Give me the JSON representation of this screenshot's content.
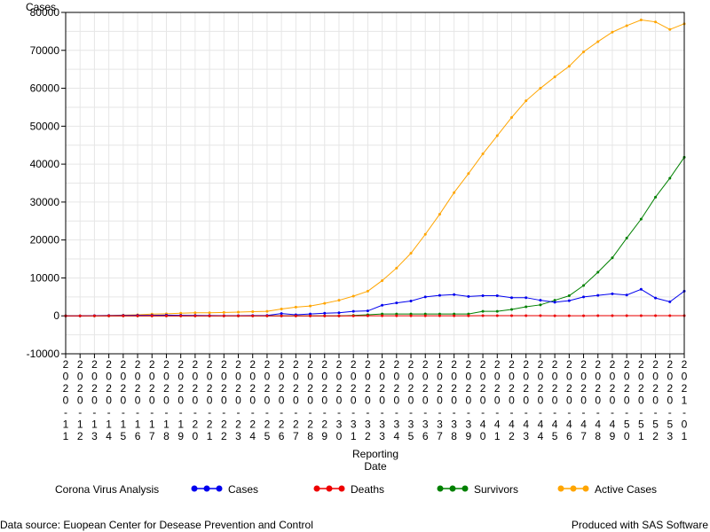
{
  "chart_data": {
    "type": "line",
    "ylabel": "Cases",
    "xlabel": "Reporting\nDate",
    "ylim": [
      -10000,
      80000
    ],
    "yticks": [
      -10000,
      0,
      10000,
      20000,
      30000,
      40000,
      50000,
      60000,
      70000,
      80000
    ],
    "grid": true,
    "legend_position": "bottom",
    "x": [
      "2020-11",
      "2020-12",
      "2020-13",
      "2020-14",
      "2020-15",
      "2020-16",
      "2020-17",
      "2020-18",
      "2020-19",
      "2020-20",
      "2020-21",
      "2020-22",
      "2020-23",
      "2020-24",
      "2020-25",
      "2020-26",
      "2020-27",
      "2020-28",
      "2020-29",
      "2020-30",
      "2020-31",
      "2020-32",
      "2020-33",
      "2020-34",
      "2020-35",
      "2020-36",
      "2020-37",
      "2020-38",
      "2020-39",
      "2020-40",
      "2020-41",
      "2020-42",
      "2020-43",
      "2020-44",
      "2020-45",
      "2020-46",
      "2020-47",
      "2020-48",
      "2020-49",
      "2020-50",
      "2020-51",
      "2020-52",
      "2020-53",
      "2021-01"
    ],
    "series": [
      {
        "name": "Cases",
        "color": "#0000ee",
        "values": [
          0,
          0,
          50,
          80,
          100,
          150,
          150,
          200,
          150,
          100,
          80,
          60,
          50,
          80,
          100,
          600,
          300,
          500,
          700,
          800,
          1200,
          1300,
          2800,
          3400,
          3900,
          5000,
          5400,
          5600,
          5100,
          5300,
          5300,
          4800,
          4800,
          4100,
          3600,
          4000,
          5000,
          5400,
          5800,
          5500,
          7000,
          4700,
          3700,
          6500
        ]
      },
      {
        "name": "Deaths",
        "color": "#ee0000",
        "values": [
          0,
          0,
          0,
          0,
          0,
          0,
          0,
          0,
          0,
          0,
          0,
          0,
          0,
          0,
          0,
          0,
          0,
          0,
          0,
          0,
          0,
          20,
          20,
          20,
          30,
          30,
          30,
          30,
          30,
          40,
          40,
          40,
          40,
          40,
          30,
          30,
          30,
          40,
          40,
          40,
          50,
          60,
          60,
          60
        ]
      },
      {
        "name": "Survivors",
        "color": "#008000",
        "values": [
          0,
          0,
          0,
          0,
          0,
          0,
          0,
          0,
          0,
          0,
          0,
          0,
          0,
          0,
          0,
          0,
          0,
          0,
          0,
          0,
          100,
          300,
          500,
          500,
          500,
          500,
          500,
          500,
          500,
          1200,
          1200,
          1700,
          2400,
          2900,
          4100,
          5300,
          8000,
          11500,
          15300,
          20500,
          25500,
          31300,
          36300,
          41800
        ]
      },
      {
        "name": "Active Cases",
        "color": "#ffa500",
        "values": [
          0,
          0,
          50,
          100,
          200,
          300,
          450,
          550,
          700,
          800,
          800,
          900,
          1000,
          1100,
          1200,
          1800,
          2300,
          2600,
          3300,
          4100,
          5200,
          6500,
          9300,
          12600,
          16500,
          21500,
          26800,
          32500,
          37500,
          42700,
          47500,
          52300,
          56700,
          60000,
          63000,
          65800,
          69600,
          72300,
          74800,
          76500,
          78000,
          77500,
          75500,
          77000
        ]
      }
    ]
  },
  "legend": {
    "title": "Corona Virus Analysis",
    "items": [
      {
        "label": "Cases",
        "color": "#0000ee"
      },
      {
        "label": "Deaths",
        "color": "#ee0000"
      },
      {
        "label": "Survivors",
        "color": "#008000"
      },
      {
        "label": "Active Cases",
        "color": "#ffa500"
      }
    ]
  },
  "footer": {
    "left": "Data source: Euopean Center for Desease Prevention and Control",
    "right": "Produced with SAS Software"
  }
}
